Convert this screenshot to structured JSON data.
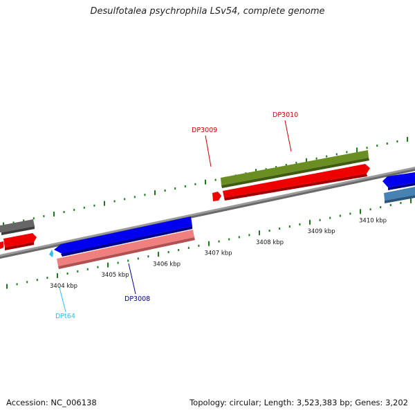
{
  "title": "Desulfotalea psychrophila LSv54, complete genome",
  "footer": {
    "accession": "Accession: NC_006138",
    "summary": "Topology: circular; Length: 3,523,383 bp; Genes: 3,202"
  },
  "ticks": [
    {
      "label": "3404 kbp"
    },
    {
      "label": "3405 kbp"
    },
    {
      "label": "3406 kbp"
    },
    {
      "label": "3407 kbp"
    },
    {
      "label": "3408 kbp"
    },
    {
      "label": "3409 kbp"
    },
    {
      "label": "3410 kbp"
    }
  ],
  "gene_labels": [
    {
      "name": "DP3009",
      "color": "#cc0000"
    },
    {
      "name": "DP3010",
      "color": "#cc0000"
    },
    {
      "name": "DP3008",
      "color": "#00008b"
    },
    {
      "name": "DPt64",
      "color": "#33bbee"
    }
  ],
  "colors": {
    "backbone": "#888888",
    "tick": "#1a7a1a",
    "cds_forward": "#0000ee",
    "cds_reverse": "#ee0000",
    "rna": "#33bbee",
    "cog_green": "#6b8e23",
    "cog_gray": "#666666",
    "cog_steelblue": "#4682b4",
    "cog_pink": "#f08080"
  }
}
